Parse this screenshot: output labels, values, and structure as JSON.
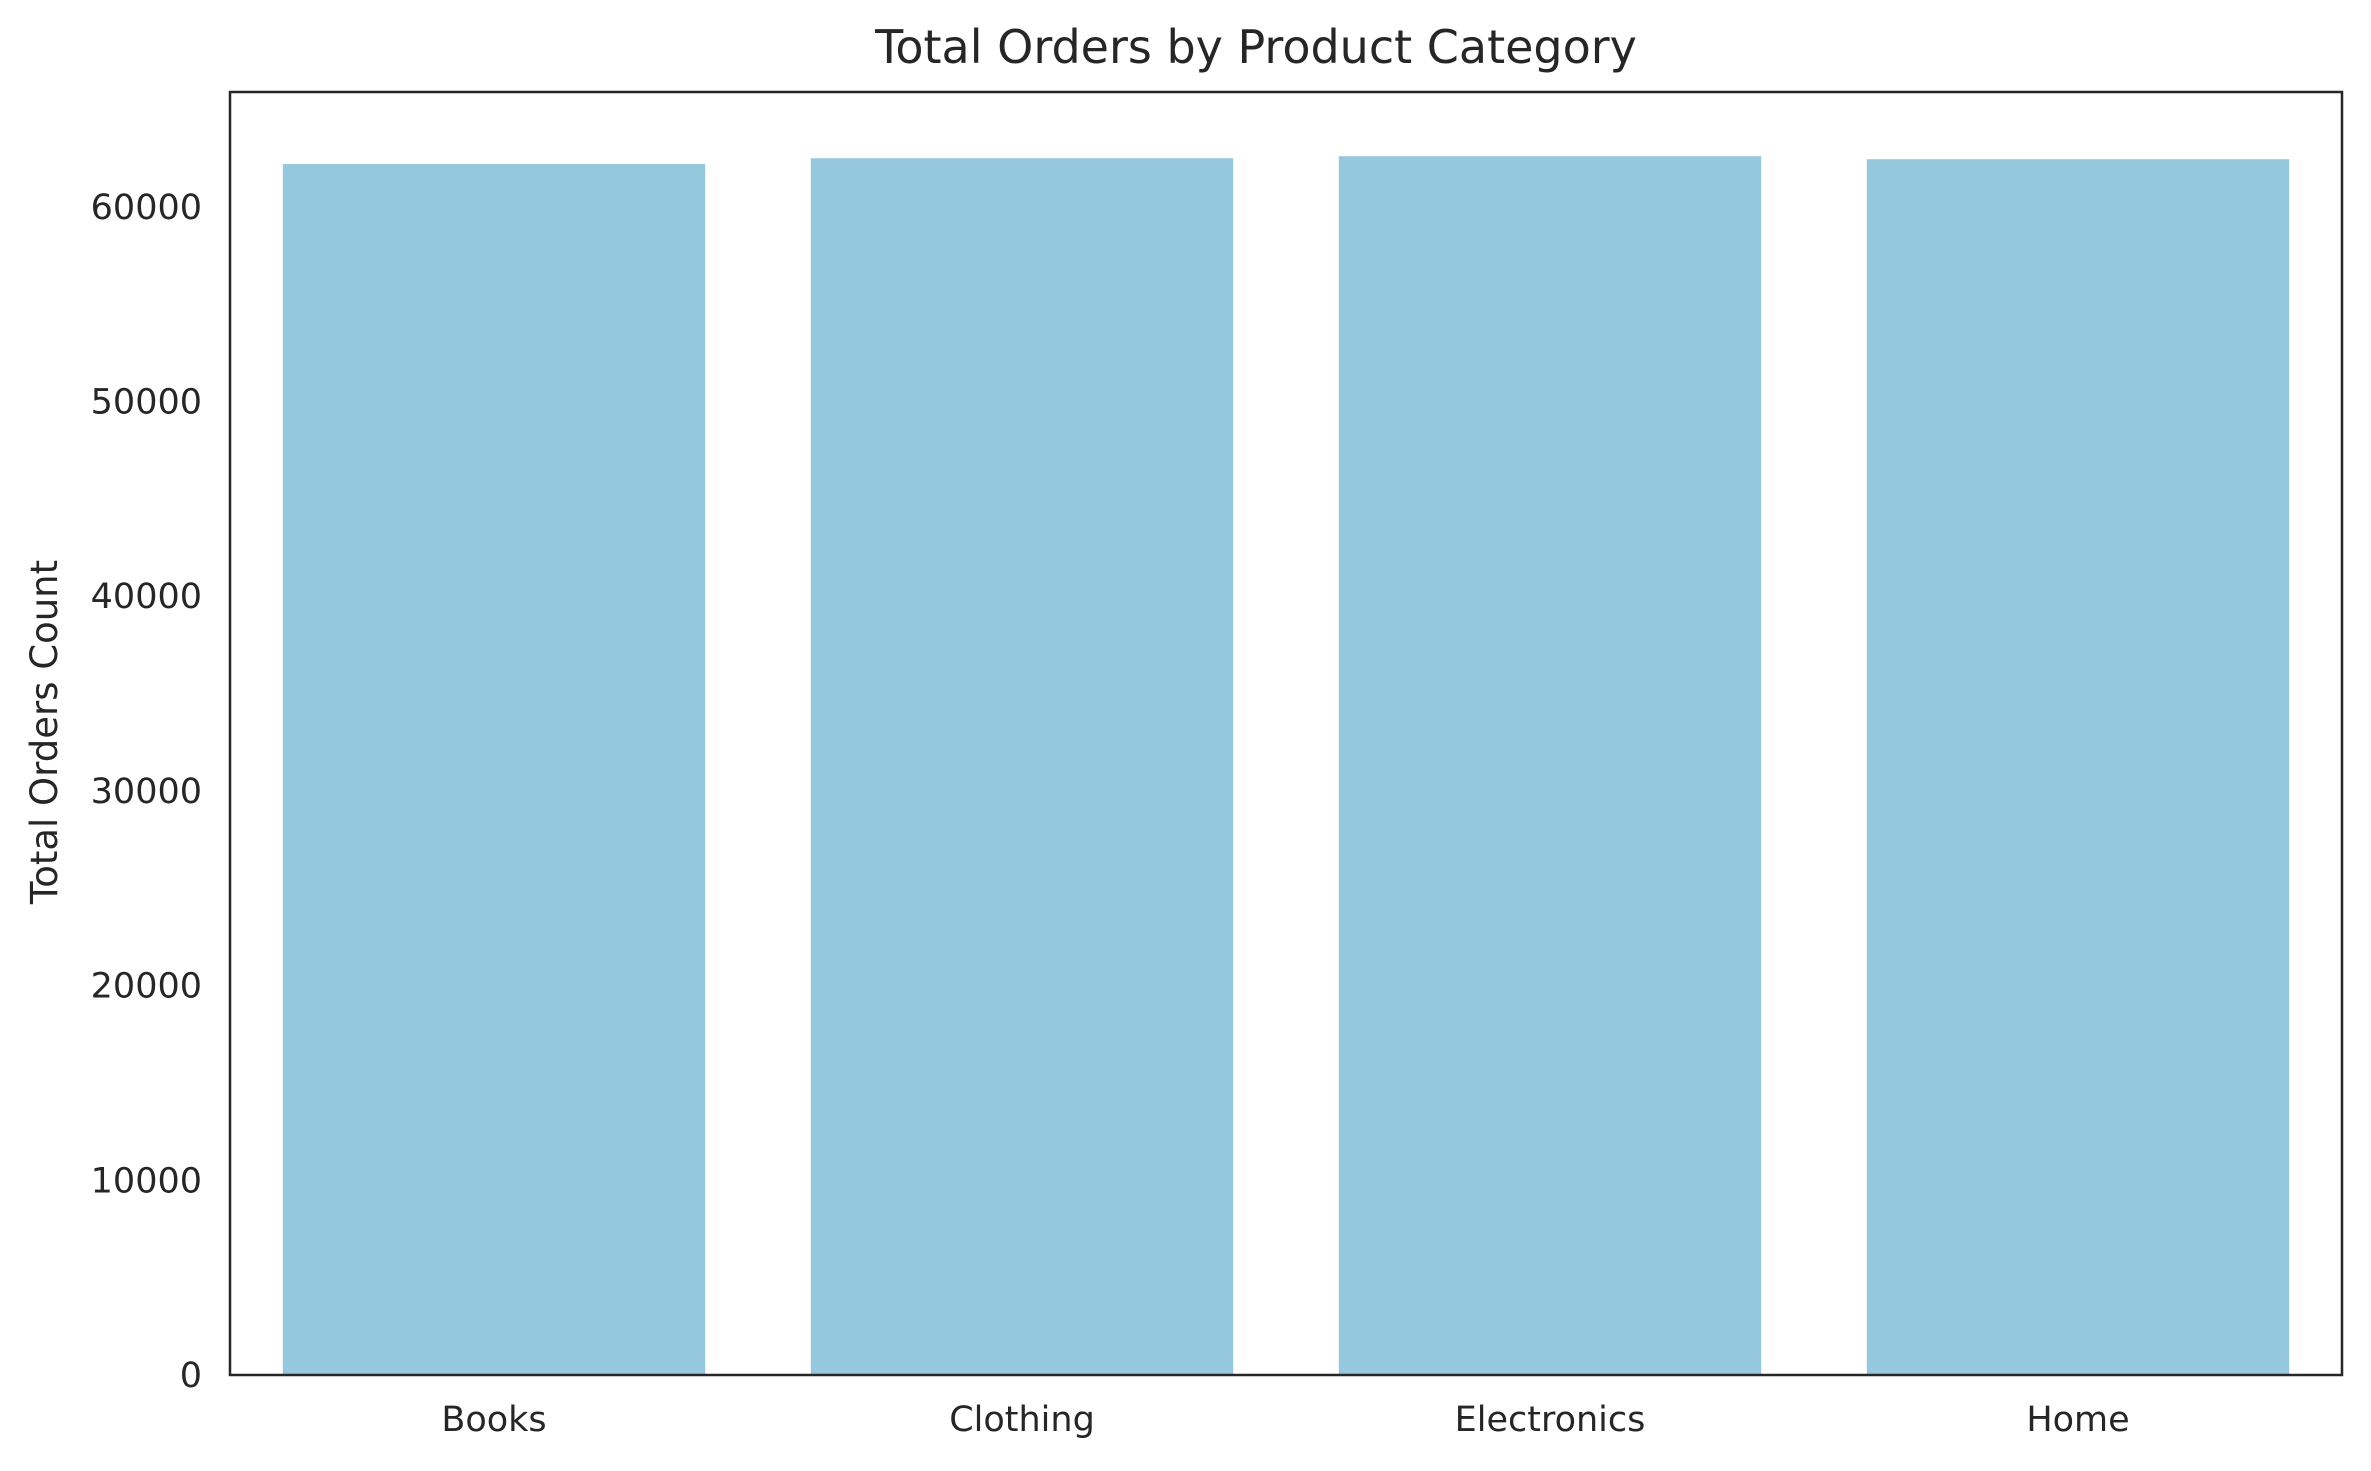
{
  "chart_data": {
    "type": "bar",
    "title": "Total Orders by Product Category",
    "xlabel": "",
    "ylabel": "Total Orders Count",
    "categories": [
      "Books",
      "Clothing",
      "Electronics",
      "Home"
    ],
    "values": [
      62200,
      62500,
      62600,
      62450
    ],
    "ylim": [
      0,
      65900
    ],
    "yticks": [
      0,
      10000,
      20000,
      30000,
      40000,
      50000,
      60000
    ],
    "ytick_labels": [
      "0",
      "10000",
      "20000",
      "30000",
      "40000",
      "50000",
      "60000"
    ],
    "grid": false,
    "legend": "none",
    "bar_color": "#95c8dd",
    "axis_color": "#262626"
  }
}
